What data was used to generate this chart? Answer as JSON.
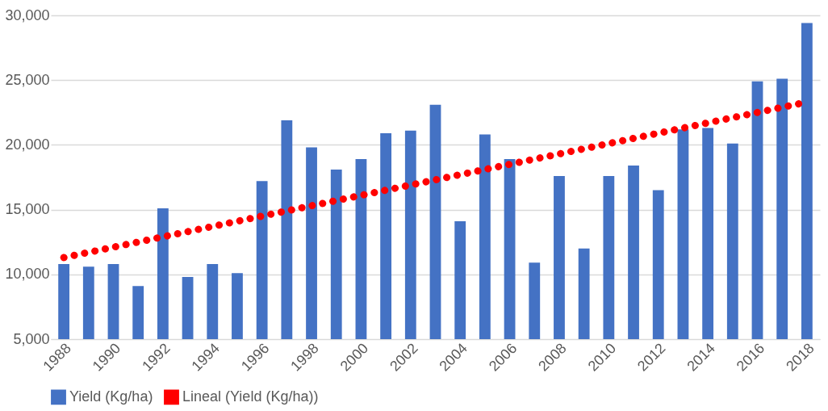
{
  "chart_data": {
    "type": "bar",
    "categories": [
      "1988",
      null,
      "1990",
      null,
      "1992",
      null,
      "1994",
      null,
      "1996",
      null,
      "1998",
      null,
      "2000",
      null,
      "2002",
      null,
      "2004",
      null,
      "2006",
      null,
      "2008",
      null,
      "2010",
      null,
      "2012",
      null,
      "2014",
      null,
      "2016",
      null,
      "2018"
    ],
    "series": [
      {
        "name": "Yield (Kg/ha)",
        "color": "#4472c4",
        "values": [
          10800,
          10600,
          10800,
          9100,
          15100,
          9800,
          10800,
          10100,
          17200,
          21900,
          19800,
          18100,
          18900,
          20900,
          21100,
          23100,
          14100,
          20800,
          18900,
          10900,
          17600,
          12000,
          17600,
          18400,
          16500,
          21200,
          21300,
          20100,
          24900,
          25100,
          29400
        ]
      },
      {
        "name": "Lineal (Yield (Kg/ha))",
        "type": "line",
        "line_style": "dotted",
        "marker": "none",
        "color": "#ff0000",
        "values": [
          11300,
          11700,
          12100,
          12500,
          12900,
          13300,
          13700,
          14100,
          14500,
          14900,
          15300,
          15700,
          16100,
          16500,
          16900,
          17300,
          17700,
          18100,
          18500,
          18900,
          19300,
          19700,
          20100,
          20500,
          20900,
          21300,
          21700,
          22100,
          22500,
          22900,
          23300
        ]
      }
    ],
    "ylim": [
      5000,
      30000
    ],
    "yticks": [
      {
        "value": 5000,
        "label": "5,000"
      },
      {
        "value": 10000,
        "label": "10,000"
      },
      {
        "value": 15000,
        "label": "15,000"
      },
      {
        "value": 20000,
        "label": "20,000"
      },
      {
        "value": 25000,
        "label": "25,000"
      },
      {
        "value": 30000,
        "label": "30,000"
      }
    ],
    "grid": "y",
    "legend": "bottom"
  }
}
